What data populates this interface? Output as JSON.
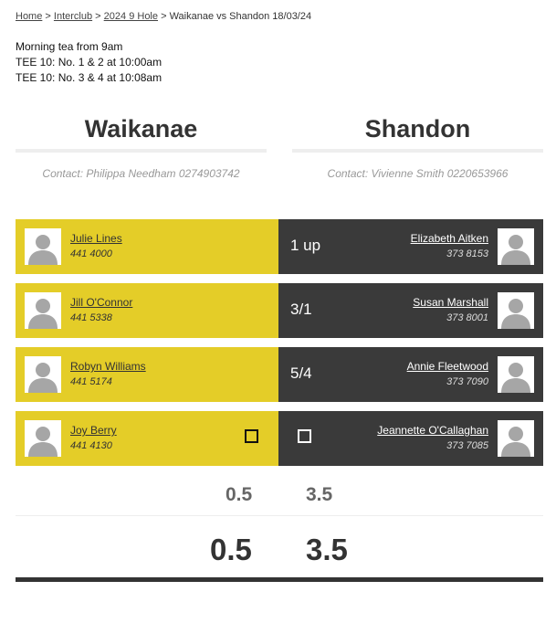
{
  "breadcrumb": {
    "home": "Home",
    "sep1": ">",
    "interclub": "Interclub",
    "sep2": ">",
    "season": "2024 9 Hole",
    "sep3": ">",
    "current": "Waikanae vs Shandon 18/03/24"
  },
  "notes": [
    "Morning tea from 9am",
    "TEE 10: No. 1 & 2 at 10:00am",
    "TEE 10: No. 3 & 4 at 10:08am"
  ],
  "home_team": {
    "name": "Waikanae",
    "contact": "Contact: Philippa Needham 0274903742",
    "color": "#e4cd28"
  },
  "away_team": {
    "name": "Shandon",
    "contact": "Contact: Vivienne Smith 0220653966",
    "color": "#3a3a3a"
  },
  "matches": [
    {
      "home_player": "Julie Lines",
      "home_phone": "441 4000",
      "result": "1 up",
      "away_player": "Elizabeth Aitken",
      "away_phone": "373 8153"
    },
    {
      "home_player": "Jill O'Connor",
      "home_phone": "441 5338",
      "result": "3/1",
      "away_player": "Susan Marshall",
      "away_phone": "373 8001"
    },
    {
      "home_player": "Robyn Williams",
      "home_phone": "441 5174",
      "result": "5/4",
      "away_player": "Annie Fleetwood",
      "away_phone": "373 7090"
    },
    {
      "home_player": "Joy Berry",
      "home_phone": "441 4130",
      "result": "",
      "away_player": "Jeannette O'Callaghan",
      "away_phone": "373 7085"
    }
  ],
  "subtotal": {
    "home": "0.5",
    "away": "3.5"
  },
  "total": {
    "home": "0.5",
    "away": "3.5"
  }
}
